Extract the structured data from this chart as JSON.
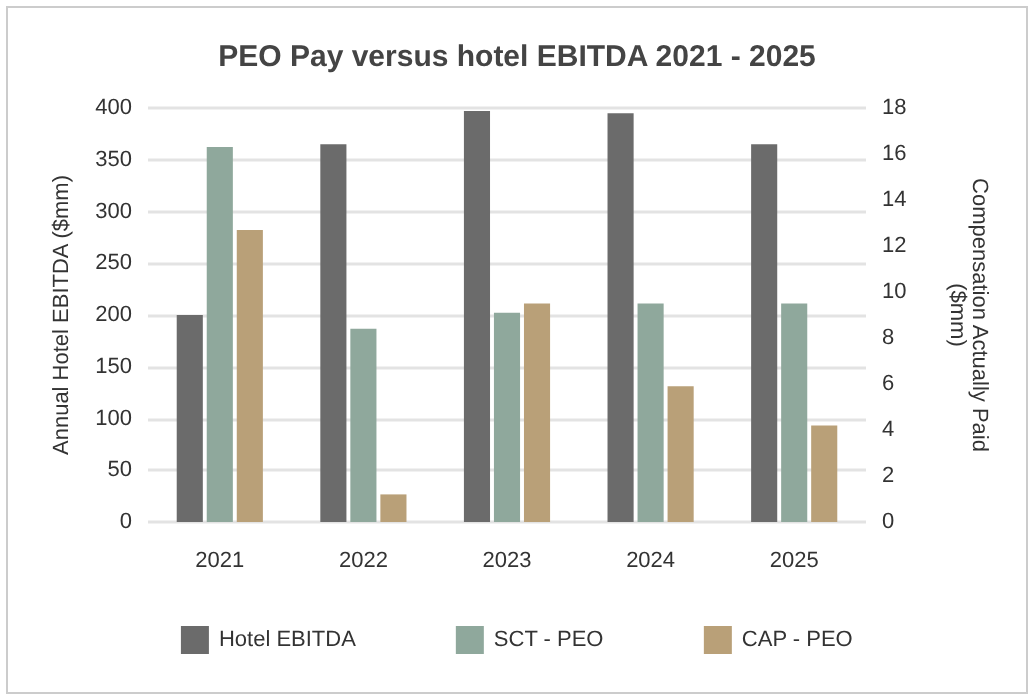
{
  "chart_data": {
    "type": "bar",
    "title": "PEO Pay versus hotel EBITDA 2021 - 2025",
    "ylabel": "Annual Hotel EBITDA ($mm)",
    "y2label": "Compensation Actually Paid\n($mm)",
    "categories": [
      "2021",
      "2022",
      "2023",
      "2024",
      "2025"
    ],
    "series": [
      {
        "name": "Hotel EBITDA",
        "color": "#6b6b6b",
        "values": [
          200,
          365,
          397,
          395,
          365
        ]
      },
      {
        "name": "SCT - PEO",
        "color": "#8fa89c",
        "values": [
          16.3,
          8.4,
          9.1,
          9.5,
          9.5
        ],
        "axis": "y2"
      },
      {
        "name": "CAP - PEO",
        "color": "#b9a078",
        "values": [
          12.7,
          1.2,
          9.5,
          5.9,
          4.2
        ],
        "axis": "y2"
      }
    ],
    "ylim": [
      0,
      400
    ],
    "yticks": [
      0,
      50,
      100,
      150,
      200,
      250,
      300,
      350,
      400
    ],
    "y2lim": [
      0,
      18
    ],
    "y2ticks": [
      0,
      2,
      4,
      6,
      8,
      10,
      12,
      14,
      16,
      18
    ],
    "grid": "y",
    "legend": "bottom"
  }
}
